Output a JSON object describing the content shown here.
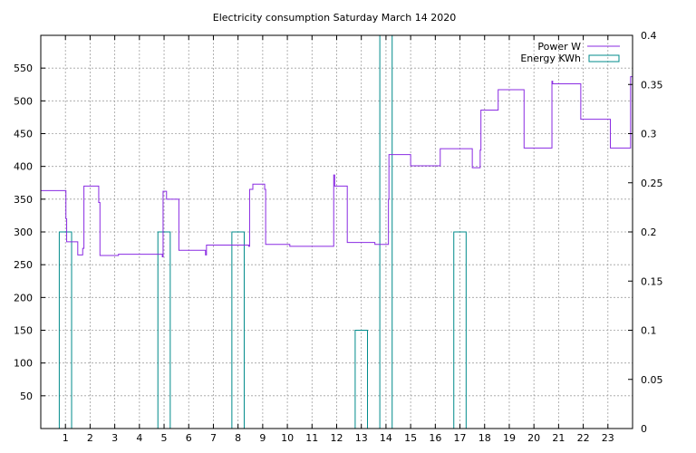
{
  "chart_data": {
    "type": "line",
    "title": "Electricity consumption Saturday March 14 2020",
    "grid": true,
    "legend_position": "top-right",
    "xlim": [
      0,
      24
    ],
    "x_ticks": [
      1,
      2,
      3,
      4,
      5,
      6,
      7,
      8,
      9,
      10,
      11,
      12,
      13,
      14,
      15,
      16,
      17,
      18,
      19,
      20,
      21,
      22,
      23
    ],
    "y_left": {
      "ylim": [
        0,
        600
      ],
      "ticks": [
        50,
        100,
        150,
        200,
        250,
        300,
        350,
        400,
        450,
        500,
        550
      ]
    },
    "y_right": {
      "ylim": [
        0,
        0.4
      ],
      "ticks": [
        0,
        0.05,
        0.1,
        0.15,
        0.2,
        0.25,
        0.3,
        0.35,
        0.4
      ],
      "tick_labels": [
        "0",
        "0.05",
        "0.1",
        "0.15",
        "0.2",
        "0.25",
        "0.3",
        "0.35",
        "0.4"
      ]
    },
    "series": [
      {
        "name": "Power W",
        "axis": "left",
        "color": "#8a2be2",
        "style": "steps",
        "points": [
          [
            0,
            363
          ],
          [
            1.0,
            363
          ],
          [
            1.02,
            320
          ],
          [
            1.05,
            285
          ],
          [
            1.45,
            285
          ],
          [
            1.5,
            265
          ],
          [
            1.65,
            265
          ],
          [
            1.7,
            275
          ],
          [
            1.75,
            370
          ],
          [
            2.3,
            370
          ],
          [
            2.35,
            345
          ],
          [
            2.4,
            264
          ],
          [
            3.1,
            264
          ],
          [
            3.15,
            266
          ],
          [
            4.9,
            266
          ],
          [
            4.93,
            262
          ],
          [
            4.96,
            362
          ],
          [
            5.05,
            362
          ],
          [
            5.1,
            350
          ],
          [
            5.55,
            350
          ],
          [
            5.6,
            272
          ],
          [
            6.65,
            272
          ],
          [
            6.68,
            265
          ],
          [
            6.72,
            280
          ],
          [
            8.4,
            280
          ],
          [
            8.43,
            278
          ],
          [
            8.47,
            365
          ],
          [
            8.55,
            365
          ],
          [
            8.6,
            373
          ],
          [
            9.05,
            373
          ],
          [
            9.08,
            365
          ],
          [
            9.12,
            281
          ],
          [
            10.05,
            281
          ],
          [
            10.1,
            278
          ],
          [
            11.85,
            278
          ],
          [
            11.88,
            387
          ],
          [
            11.92,
            370
          ],
          [
            12.4,
            370
          ],
          [
            12.43,
            284
          ],
          [
            13.5,
            284
          ],
          [
            13.55,
            281
          ],
          [
            14.05,
            281
          ],
          [
            14.1,
            350
          ],
          [
            14.12,
            418
          ],
          [
            14.95,
            418
          ],
          [
            15.0,
            401
          ],
          [
            16.15,
            401
          ],
          [
            16.2,
            427
          ],
          [
            17.45,
            427
          ],
          [
            17.5,
            398
          ],
          [
            17.8,
            398
          ],
          [
            17.82,
            425
          ],
          [
            17.85,
            486
          ],
          [
            18.5,
            486
          ],
          [
            18.55,
            517
          ],
          [
            19.55,
            517
          ],
          [
            19.6,
            428
          ],
          [
            20.7,
            428
          ],
          [
            20.73,
            530
          ],
          [
            20.76,
            526
          ],
          [
            21.85,
            526
          ],
          [
            21.9,
            472
          ],
          [
            23.05,
            472
          ],
          [
            23.1,
            428
          ],
          [
            23.88,
            428
          ],
          [
            23.92,
            537
          ],
          [
            24,
            537
          ]
        ]
      },
      {
        "name": "Energy KWh",
        "axis": "right",
        "color": "#008b8b",
        "style": "impulse-boxes",
        "bars": [
          {
            "x0": 0.75,
            "x1": 1.25,
            "value": 0.2
          },
          {
            "x0": 4.75,
            "x1": 5.25,
            "value": 0.2
          },
          {
            "x0": 7.75,
            "x1": 8.25,
            "value": 0.2
          },
          {
            "x0": 12.75,
            "x1": 13.25,
            "value": 0.1
          },
          {
            "x0": 13.75,
            "x1": 14.25,
            "value": 0.4
          },
          {
            "x0": 16.75,
            "x1": 17.25,
            "value": 0.2
          }
        ]
      }
    ]
  }
}
